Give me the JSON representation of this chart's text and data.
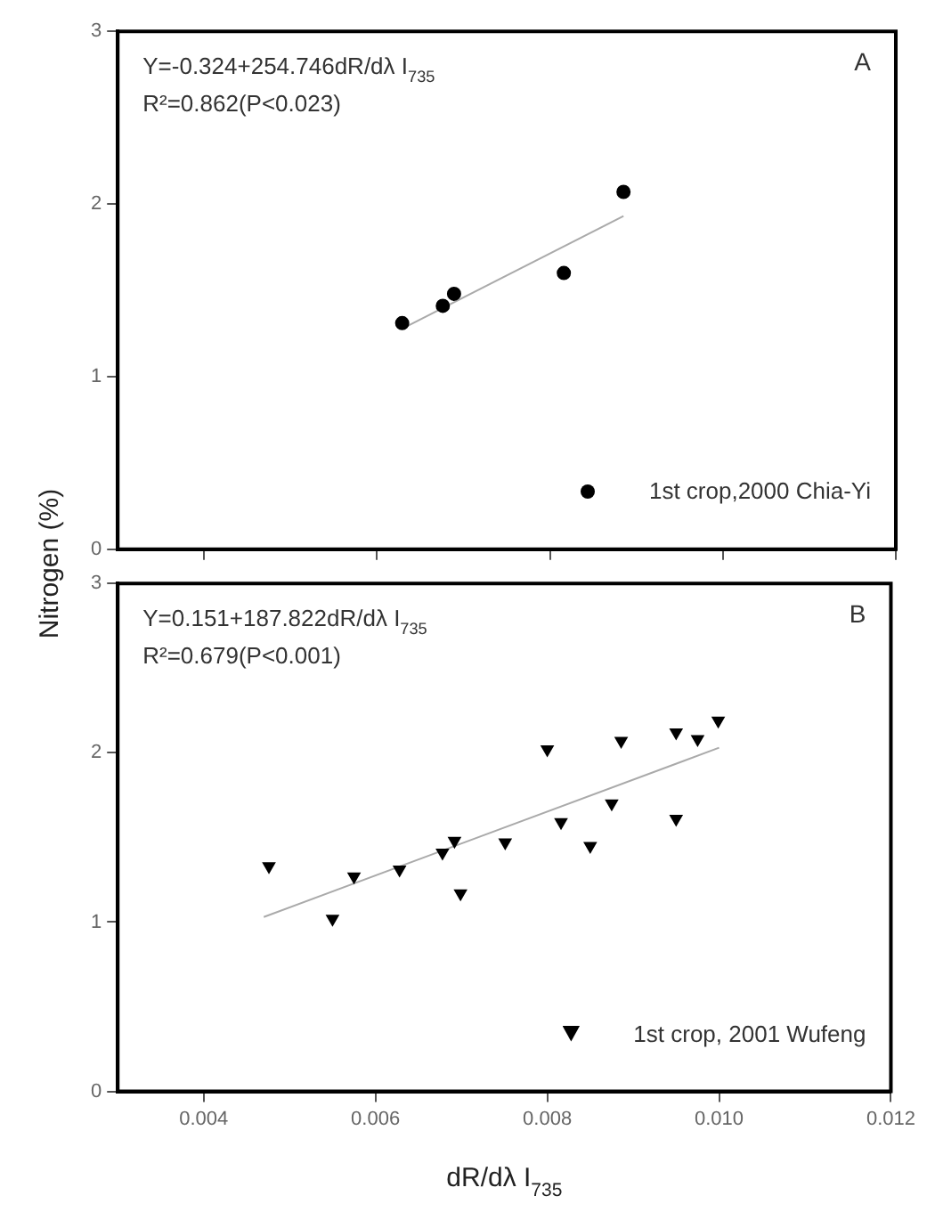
{
  "chart_data": [
    {
      "type": "scatter",
      "annotations": [
        "Y=-0.324+254.746dR/dλ I$_{735}$",
        "R²=0.862(P<0.023)",
        "A"
      ],
      "ylabel": "Nitrogen (%)",
      "series": [
        {
          "name": "1st crop,2000 Chia-Yi",
          "color": "#000000",
          "marker": "circle",
          "x": [
            0.00629,
            0.00676,
            0.00689,
            0.00816,
            0.00885
          ],
          "values": [
            1.31,
            1.41,
            1.48,
            1.6,
            2.07
          ]
        },
        {
          "type": "line",
          "color": "#aaaaaa",
          "x": [
            0.0063,
            0.00885
          ],
          "values": [
            1.28,
            1.93
          ]
        }
      ],
      "xlim": [
        0.003,
        0.012
      ],
      "xticks": [
        0.004,
        0.006,
        0.008,
        0.01,
        0.012
      ],
      "ylim": [
        0,
        3
      ],
      "yticks": [
        0,
        1,
        2,
        3
      ],
      "tick_labels": "y",
      "legend": "bottom right",
      "grid": false
    },
    {
      "type": "scatter",
      "annotations": [
        "Y=0.151+187.822dR/dλ I$_{735}$",
        "R²=0.679(P<0.001)",
        "B"
      ],
      "xlabel": "dR/dλ I$_{735}$",
      "series": [
        {
          "name": "1st crop, 2001 Wufeng",
          "color": "#000000",
          "marker": "triangle",
          "x": [
            0.00476,
            0.0055,
            0.00575,
            0.00628,
            0.00678,
            0.00692,
            0.00699,
            0.00751,
            0.008,
            0.00816,
            0.0085,
            0.00875,
            0.00886,
            0.0095,
            0.0095,
            0.00975,
            0.00999
          ],
          "values": [
            1.33,
            1.02,
            1.27,
            1.31,
            1.41,
            1.48,
            1.17,
            1.47,
            2.02,
            1.59,
            1.45,
            1.7,
            2.07,
            2.12,
            1.61,
            2.08,
            2.19
          ]
        },
        {
          "type": "line",
          "color": "#aaaaaa",
          "x": [
            0.0047,
            0.01
          ],
          "values": [
            1.03,
            2.03
          ]
        }
      ],
      "xlim": [
        0.003,
        0.012
      ],
      "xticks": [
        0.004,
        0.006,
        0.008,
        {
          "value": 0.01,
          "label": "0.010"
        },
        {
          "value": 0.012,
          "label": "0.012"
        }
      ],
      "ylim": [
        0,
        3
      ],
      "yticks": [
        0,
        1,
        2,
        3
      ],
      "legend": "bottom right",
      "grid": false
    }
  ]
}
